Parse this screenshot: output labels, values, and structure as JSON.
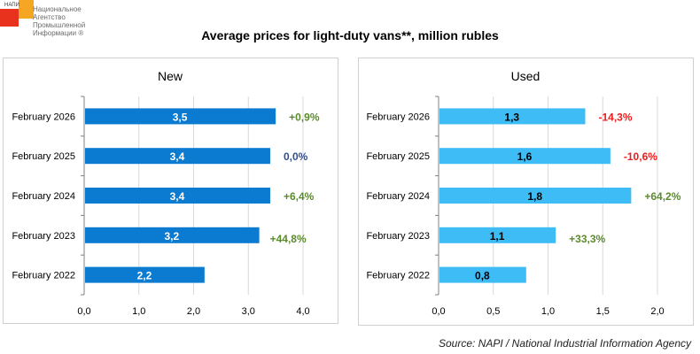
{
  "logo": {
    "short": "НАПИ",
    "lines": [
      "Национальное",
      "Агентство",
      "Промышленной",
      "Информации ®"
    ]
  },
  "title": "Average prices for light-duty vans**, million rubles",
  "source": "Source: NAPI / National Industrial Information Agency",
  "colors": {
    "new_bar": "#0a7bd0",
    "used_bar": "#3dbcf6",
    "positive": "#5b8a2e",
    "neutral": "#2f4f8f",
    "negative": "#ee1c1c",
    "grid": "#d9d9d9"
  },
  "chart_data": [
    {
      "type": "bar",
      "orientation": "horizontal",
      "title": "New",
      "categories": [
        "February 2026",
        "February 2025",
        "February 2024",
        "February 2023",
        "February 2022"
      ],
      "values": [
        3.5,
        3.4,
        3.4,
        3.2,
        2.2
      ],
      "value_labels": [
        "3,5",
        "3,4",
        "3,4",
        "3,2",
        "2,2"
      ],
      "change_labels": [
        "+0,9%",
        "0,0%",
        "+6,4%",
        "+44,8%",
        ""
      ],
      "change_signs": [
        "positive",
        "neutral",
        "positive",
        "positive",
        ""
      ],
      "xlim": [
        0,
        4.5
      ],
      "xticks": [
        0,
        1,
        2,
        3,
        4
      ],
      "xtick_labels": [
        "0,0",
        "1,0",
        "2,0",
        "3,0",
        "4,0"
      ],
      "grid": true
    },
    {
      "type": "bar",
      "orientation": "horizontal",
      "title": "Used",
      "categories": [
        "February 2026",
        "February 2025",
        "February 2024",
        "February 2023",
        "February 2022"
      ],
      "values": [
        1.34,
        1.57,
        1.76,
        1.07,
        0.8
      ],
      "value_labels": [
        "1,3",
        "1,6",
        "1,8",
        "1,1",
        "0,8"
      ],
      "change_labels": [
        "-14,3%",
        "-10,6%",
        "+64,2%",
        "+33,3%",
        ""
      ],
      "change_signs": [
        "negative",
        "negative",
        "positive",
        "positive",
        ""
      ],
      "xlim": [
        0,
        2.25
      ],
      "xticks": [
        0,
        0.5,
        1,
        1.5,
        2
      ],
      "xtick_labels": [
        "0,0",
        "0,5",
        "1,0",
        "1,5",
        "2,0"
      ],
      "grid": true
    }
  ]
}
